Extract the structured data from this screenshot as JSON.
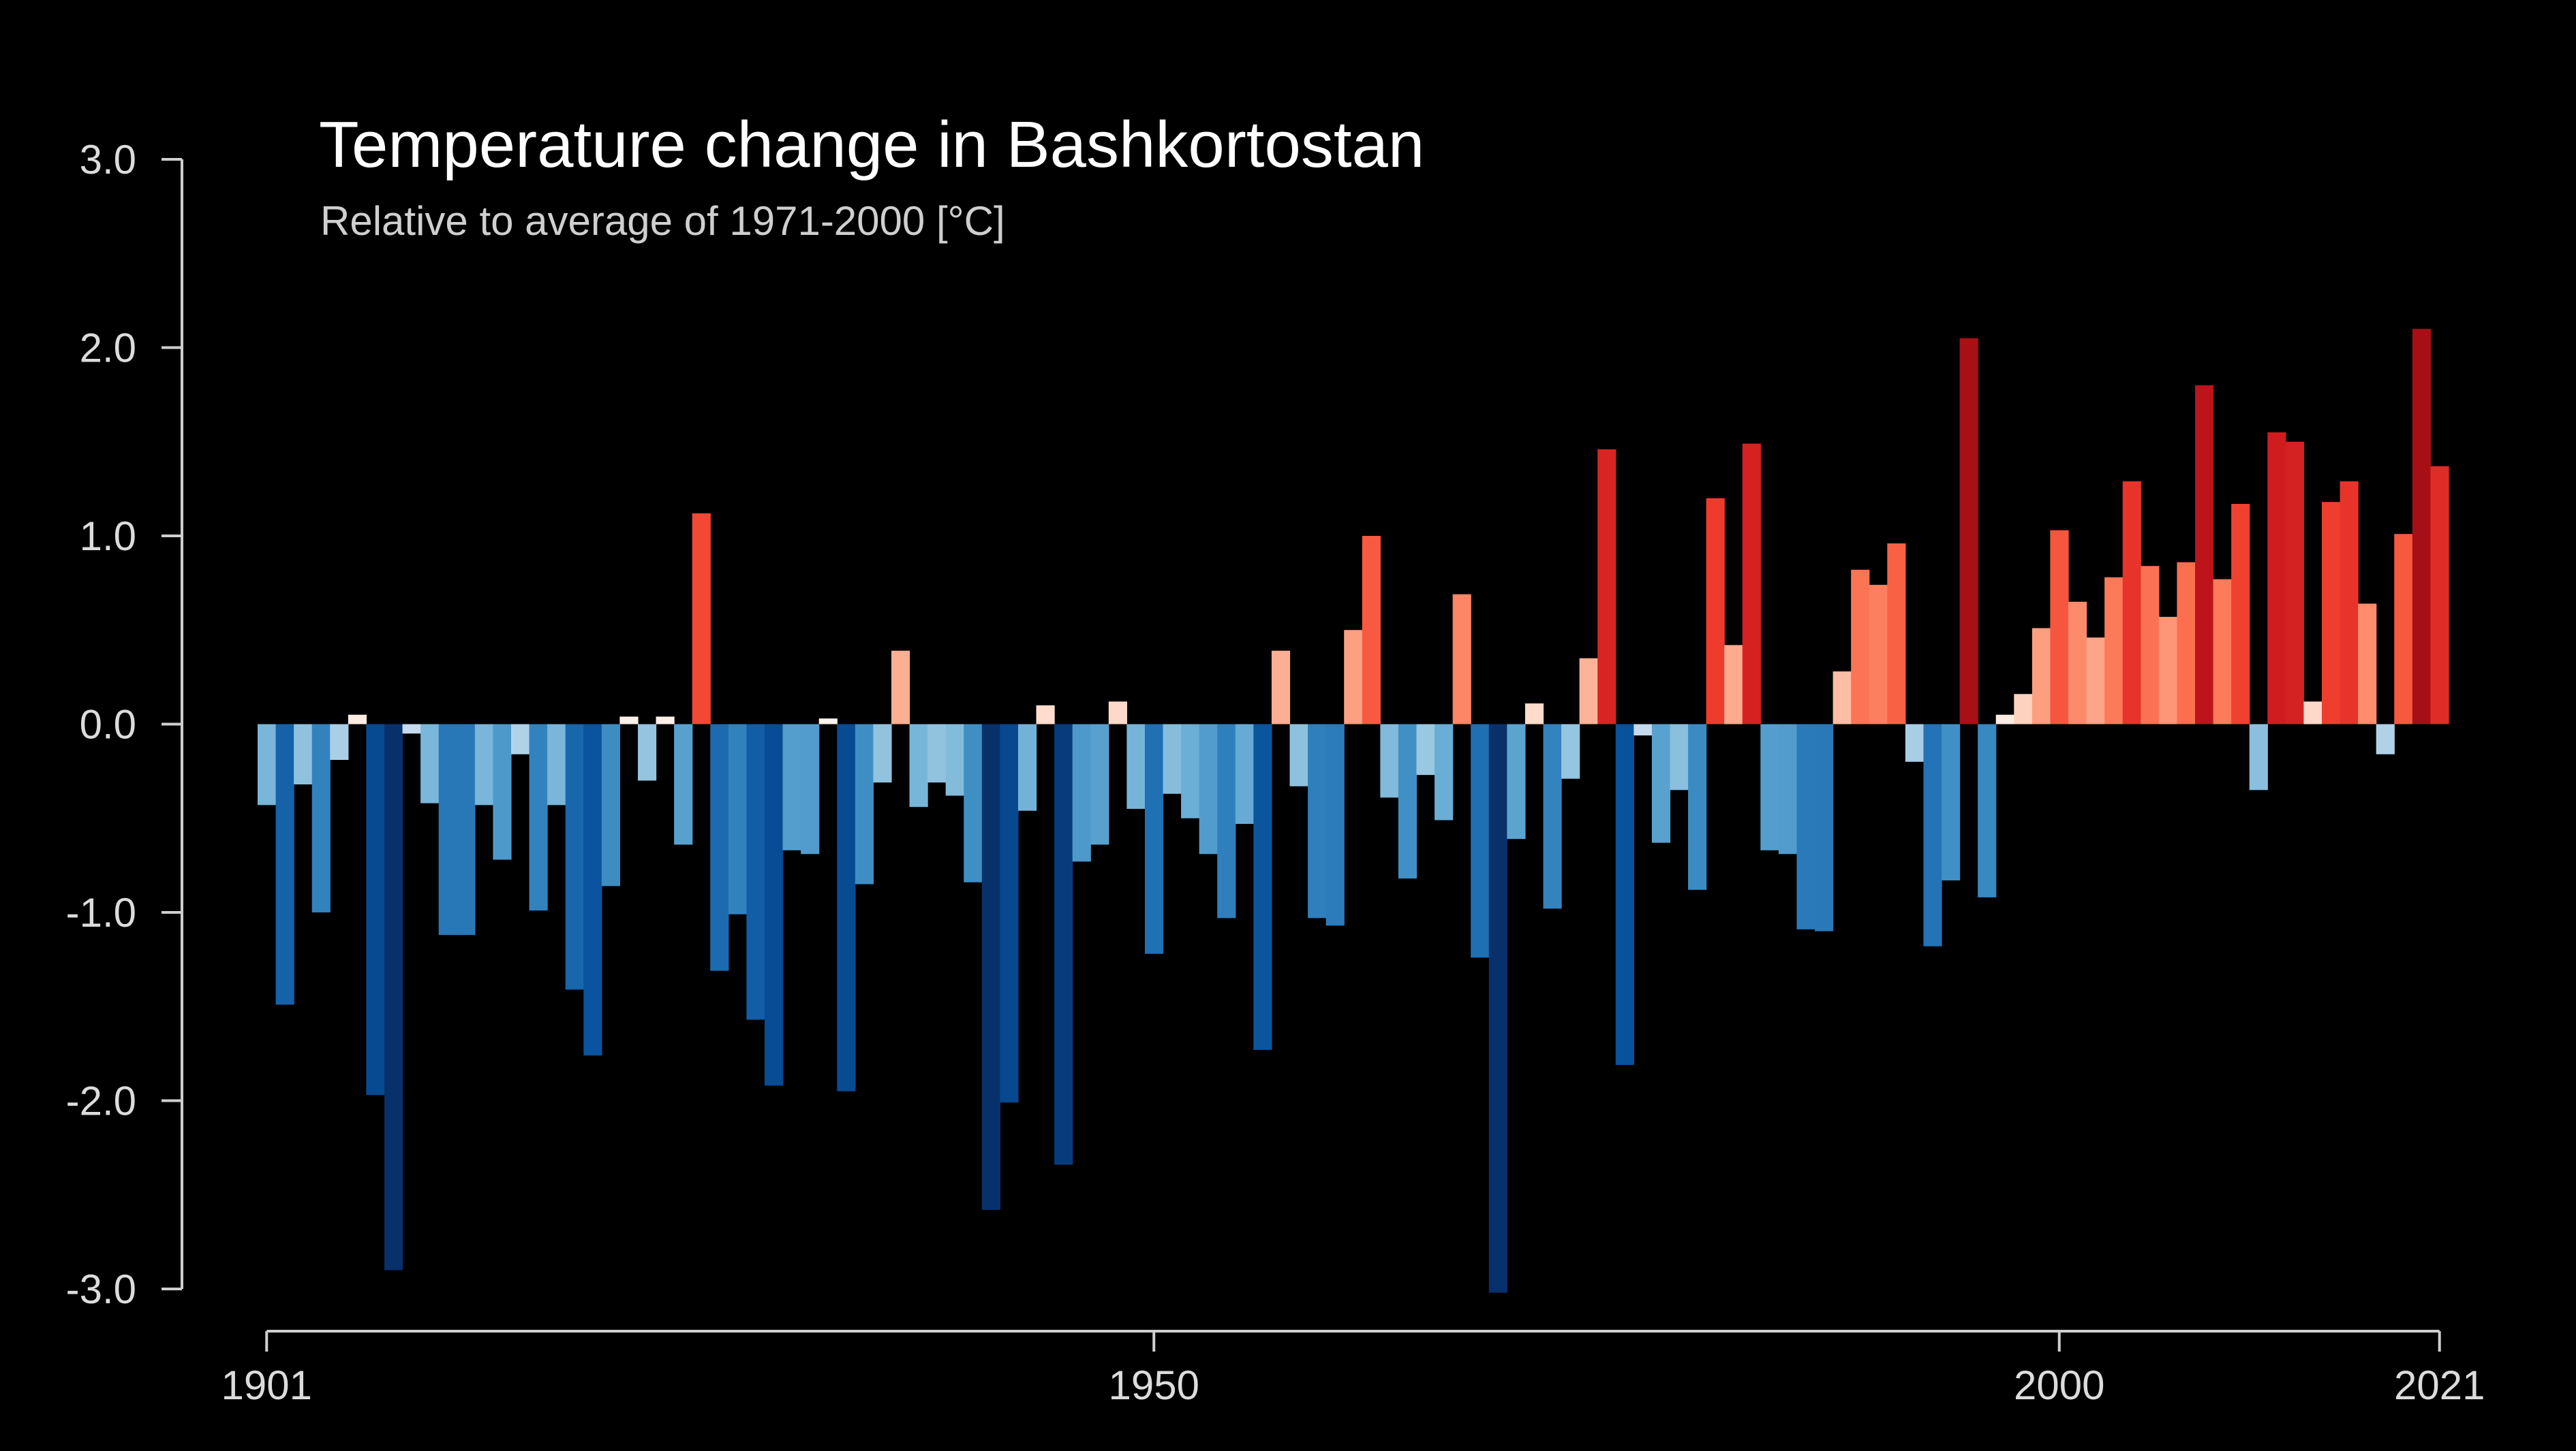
{
  "chart_data": {
    "type": "bar",
    "title": "Temperature change in Bashkortostan",
    "subtitle": "Relative to average of 1971-2000  [°C]",
    "xlabel": "",
    "ylabel": "",
    "x_start": 1901,
    "x_end": 2021,
    "ylim": [
      -3.0,
      3.0
    ],
    "grid": false,
    "legend": "none",
    "y_ticks": [
      "3.0",
      "2.0",
      "1.0",
      "0.0",
      "-1.0",
      "-2.0",
      "-3.0"
    ],
    "y_tick_values": [
      3.0,
      2.0,
      1.0,
      0.0,
      -1.0,
      -2.0,
      -3.0
    ],
    "x_ticks": [
      "1901",
      "1950",
      "2000",
      "2021"
    ],
    "x_tick_values": [
      1901,
      1950,
      2000,
      2021
    ],
    "colors": {
      "background": "#000000",
      "axis": "#cfcfcf",
      "text": "#ffffff",
      "cold_extreme": "#08306b",
      "warm_extreme": "#a50f15",
      "neutral": "#ffffff"
    },
    "values": [
      -0.43,
      -1.49,
      -0.32,
      -1.0,
      -0.19,
      0.05,
      -1.97,
      -2.9,
      -0.05,
      -0.42,
      -1.12,
      -1.12,
      -0.43,
      -0.72,
      -0.16,
      -0.99,
      -0.43,
      -1.41,
      -1.76,
      -0.86,
      0.04,
      -0.3,
      0.04,
      -0.64,
      1.12,
      -1.31,
      -1.01,
      -1.57,
      -1.92,
      -0.67,
      -0.69,
      0.03,
      -1.95,
      -0.85,
      -0.31,
      0.39,
      -0.44,
      -0.31,
      -0.38,
      -0.84,
      -2.58,
      -2.01,
      -0.46,
      0.1,
      -2.34,
      -0.73,
      -0.64,
      0.12,
      -0.45,
      -1.22,
      -0.37,
      -0.5,
      -0.69,
      -1.03,
      -0.53,
      -1.73,
      0.39,
      -0.33,
      -1.03,
      -1.07,
      0.5,
      1.0,
      -0.39,
      -0.82,
      -0.27,
      -0.51,
      0.69,
      -1.24,
      -3.02,
      -0.61,
      0.11,
      -0.98,
      -0.29,
      0.35,
      1.46,
      -1.81,
      -0.06,
      -0.63,
      -0.35,
      -0.88,
      1.2,
      0.42,
      1.49,
      -0.67,
      -0.69,
      -1.09,
      -1.1,
      0.28,
      0.82,
      0.74,
      0.96,
      -0.2,
      -1.18,
      -0.83,
      2.05,
      -0.92,
      0.05,
      0.16,
      0.51,
      1.03,
      0.65,
      0.46,
      0.78,
      1.29,
      0.84,
      0.57,
      0.86,
      1.8,
      0.77,
      1.17,
      -0.35,
      1.55,
      1.5,
      0.12,
      1.18,
      1.29,
      0.64,
      -0.16,
      1.01,
      2.1,
      1.37
    ]
  }
}
